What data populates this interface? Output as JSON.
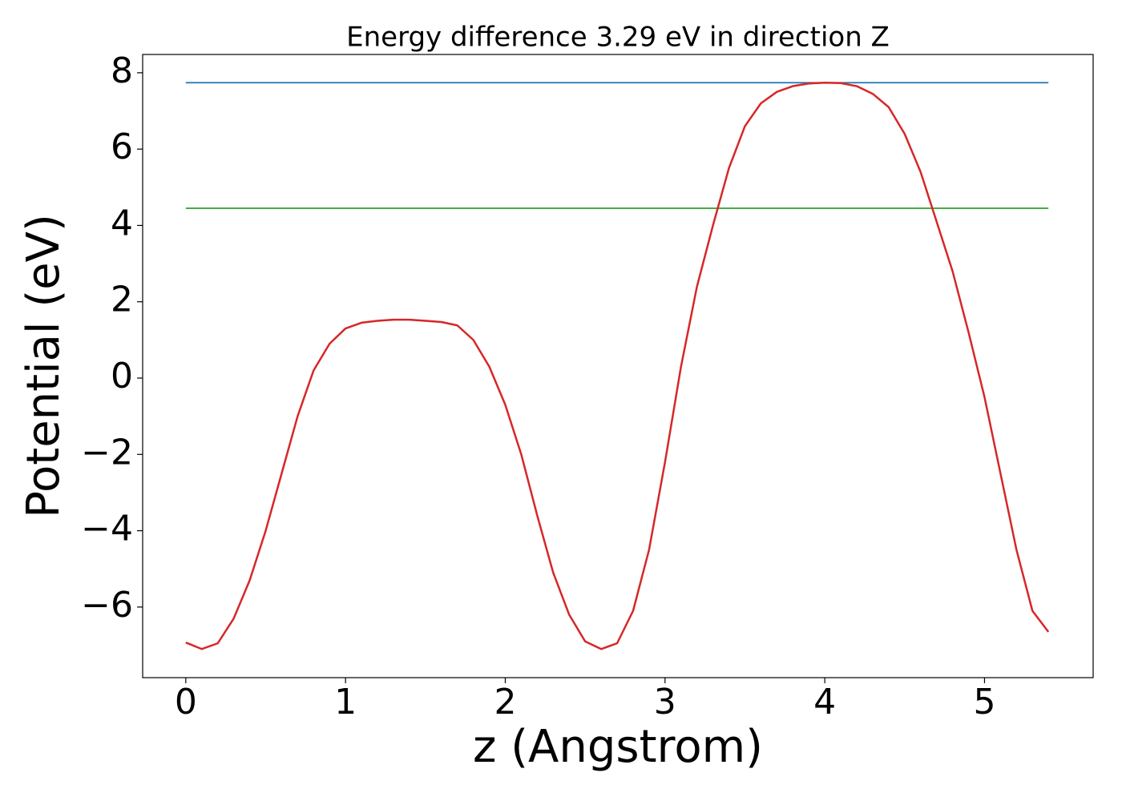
{
  "chart_data": {
    "type": "line",
    "title": "Energy difference 3.29 eV in direction Z",
    "xlabel": "z (Angstrom)",
    "ylabel": "Potential (eV)",
    "xlim": [
      -0.27,
      5.68
    ],
    "ylim": [
      -7.85,
      8.48
    ],
    "xticks": [
      0,
      1,
      2,
      3,
      4,
      5
    ],
    "yticks": [
      {
        "value": -6,
        "label": "−6"
      },
      {
        "value": -4,
        "label": "−4"
      },
      {
        "value": -2,
        "label": "−2"
      },
      0,
      2,
      4,
      6,
      8
    ],
    "series": [
      {
        "color": "#1f77b4",
        "x": [
          0,
          5.4
        ],
        "values": [
          7.74,
          7.74
        ]
      },
      {
        "color": "#2ca02c",
        "x": [
          0,
          5.4
        ],
        "values": [
          4.45,
          4.45
        ]
      },
      {
        "color": "#d62728",
        "x": [
          0,
          0.1,
          0.2,
          0.3,
          0.4,
          0.5,
          0.6,
          0.7,
          0.8,
          0.9,
          1.0,
          1.1,
          1.2,
          1.3,
          1.4,
          1.5,
          1.6,
          1.7,
          1.8,
          1.9,
          2.0,
          2.1,
          2.2,
          2.3,
          2.4,
          2.5,
          2.6,
          2.7,
          2.8,
          2.9,
          3.0,
          3.1,
          3.2,
          3.3,
          3.4,
          3.5,
          3.6,
          3.7,
          3.8,
          3.9,
          4.0,
          4.1,
          4.2,
          4.3,
          4.4,
          4.5,
          4.6,
          4.7,
          4.8,
          4.9,
          5.0,
          5.1,
          5.2,
          5.3,
          5.4
        ],
        "values": [
          -6.93,
          -7.1,
          -6.95,
          -6.3,
          -5.3,
          -4.0,
          -2.5,
          -1.0,
          0.2,
          0.9,
          1.3,
          1.45,
          1.5,
          1.53,
          1.53,
          1.5,
          1.47,
          1.38,
          1.0,
          0.3,
          -0.7,
          -2.0,
          -3.6,
          -5.1,
          -6.2,
          -6.9,
          -7.1,
          -6.95,
          -6.1,
          -4.5,
          -2.2,
          0.3,
          2.4,
          4.0,
          5.5,
          6.6,
          7.2,
          7.5,
          7.65,
          7.72,
          7.74,
          7.73,
          7.65,
          7.45,
          7.1,
          6.4,
          5.4,
          4.1,
          2.8,
          1.2,
          -0.5,
          -2.5,
          -4.5,
          -6.1,
          -6.65
        ]
      }
    ]
  }
}
